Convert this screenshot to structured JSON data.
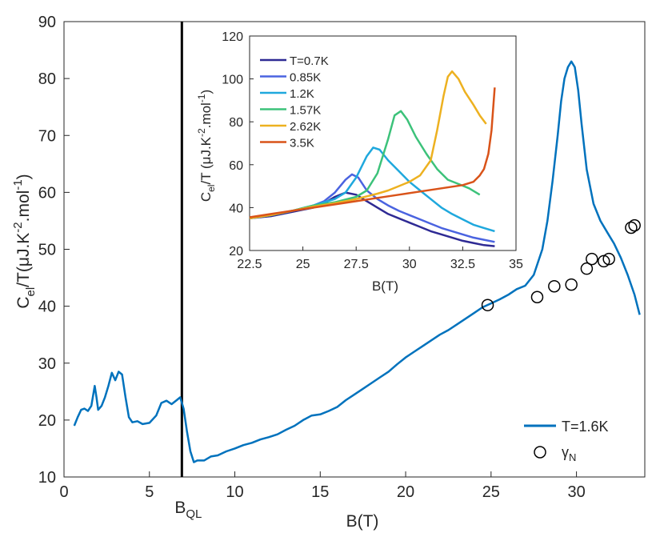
{
  "chart_data": [
    {
      "type": "line",
      "xlabel": "B(T)",
      "ylabel_main": "C",
      "ylabel_sub": "el",
      "ylabel_rest": "/T(μJ.K",
      "ylabel_sup1": "-2",
      "ylabel_mid": ".mol",
      "ylabel_sup2": "-1",
      "ylabel_end": ")",
      "xlim": [
        0,
        34
      ],
      "ylim": [
        10,
        90
      ],
      "xticks": [
        0,
        5,
        10,
        15,
        20,
        25,
        30
      ],
      "yticks": [
        10,
        20,
        30,
        40,
        50,
        60,
        70,
        80,
        90
      ],
      "vline": {
        "x": 6.9,
        "label_main": "B",
        "label_sub": "QL"
      },
      "series": [
        {
          "name": "T=1.6K",
          "color": "#0072BD",
          "x": [
            0.6,
            0.8,
            1.0,
            1.2,
            1.4,
            1.6,
            1.8,
            1.9,
            2.0,
            2.2,
            2.4,
            2.6,
            2.8,
            3.0,
            3.2,
            3.4,
            3.6,
            3.8,
            4.0,
            4.3,
            4.6,
            5.0,
            5.4,
            5.7,
            6.0,
            6.3,
            6.6,
            6.8,
            7.0,
            7.2,
            7.4,
            7.6,
            7.8,
            8.2,
            8.6,
            9.0,
            9.5,
            10.0,
            10.5,
            11.0,
            11.5,
            12.0,
            12.5,
            13.0,
            13.5,
            14.0,
            14.5,
            15.0,
            15.5,
            16.0,
            16.5,
            17.0,
            17.5,
            18.0,
            18.5,
            19.0,
            19.5,
            20.0,
            20.5,
            21.0,
            21.5,
            22.0,
            22.5,
            23.0,
            23.5,
            24.0,
            24.5,
            25.0,
            25.5,
            26.0,
            26.5,
            27.0,
            27.5,
            28.0,
            28.3,
            28.6,
            28.9,
            29.1,
            29.3,
            29.5,
            29.7,
            29.9,
            30.1,
            30.3,
            30.6,
            31.0,
            31.4,
            31.8,
            32.2,
            32.6,
            33.0,
            33.4,
            33.7
          ],
          "y": [
            19,
            20.5,
            21.8,
            22,
            21.6,
            22.5,
            26,
            24,
            21.8,
            22.5,
            24,
            26,
            28.3,
            27,
            28.5,
            28,
            24,
            20.5,
            19.6,
            19.8,
            19.3,
            19.5,
            20.8,
            23,
            23.4,
            22.8,
            23.5,
            24,
            22,
            18,
            14.5,
            12.6,
            12.9,
            12.9,
            13.6,
            13.8,
            14.5,
            15,
            15.6,
            16,
            16.6,
            17,
            17.5,
            18.3,
            19,
            20,
            20.8,
            21,
            21.6,
            22.3,
            23.5,
            24.5,
            25.5,
            26.5,
            27.5,
            28.5,
            29.8,
            31,
            32,
            33,
            34,
            35,
            35.8,
            36.8,
            37.8,
            38.8,
            39.8,
            40.5,
            41.2,
            42,
            43,
            43.6,
            45.5,
            50,
            55,
            62,
            70,
            76,
            80,
            82,
            83,
            82,
            78,
            72,
            64,
            58,
            55,
            53,
            51,
            48.5,
            45.5,
            42,
            38.5
          ]
        }
      ],
      "gamma_n": {
        "name": "γ",
        "name_sub": "N",
        "x": [
          24.8,
          27.7,
          28.7,
          29.7,
          30.6,
          30.9,
          31.6,
          31.9,
          33.2,
          33.4
        ],
        "y": [
          40.2,
          41.6,
          43.5,
          43.8,
          46.6,
          48.3,
          47.9,
          48.3,
          53.8,
          54.2
        ]
      },
      "legend": {
        "position": "bottom-right",
        "line_label": "T=1.6K"
      }
    },
    {
      "type": "line",
      "xlabel": "B(T)",
      "ylabel_main": "C",
      "ylabel_sub": "el",
      "ylabel_rest": "/T (μJ.K",
      "ylabel_sup1": "-2",
      "ylabel_mid": ".mol",
      "ylabel_sup2": "-1",
      "ylabel_end": ")",
      "xlim": [
        22.5,
        35
      ],
      "ylim": [
        20,
        120
      ],
      "xticks": [
        22.5,
        25,
        27.5,
        30,
        32.5,
        35
      ],
      "xtick_labels": [
        "22.5",
        "25",
        "27.5",
        "30",
        "32.5",
        "35"
      ],
      "yticks": [
        20,
        40,
        60,
        80,
        100,
        120
      ],
      "legend": {
        "position": "top-left"
      },
      "series": [
        {
          "name": "T=0.7K",
          "color": "#2E2A94",
          "x": [
            22.5,
            23.5,
            24.5,
            25.5,
            26.0,
            26.5,
            27.0,
            27.5,
            28.0,
            28.5,
            29.0,
            29.5,
            30.0,
            30.5,
            31.0,
            31.5,
            32.0,
            32.5,
            33.0,
            33.5,
            34.0
          ],
          "y": [
            35,
            36,
            38,
            40,
            42,
            45,
            47,
            46,
            43,
            40,
            37,
            35,
            33,
            31,
            29,
            27.5,
            26,
            24.5,
            23.5,
            22.5,
            22
          ]
        },
        {
          "name": "0.85K",
          "color": "#4A63E0",
          "x": [
            22.5,
            23.5,
            24.5,
            25.5,
            26.0,
            26.5,
            27.0,
            27.3,
            27.6,
            28.0,
            28.5,
            29.0,
            29.5,
            30.0,
            30.5,
            31.0,
            31.5,
            32.0,
            32.5,
            33.0,
            33.5,
            34.0
          ],
          "y": [
            35,
            36.5,
            38.5,
            41,
            43,
            47,
            53,
            55.5,
            54,
            48,
            44,
            41,
            38.5,
            36.5,
            34.5,
            32.5,
            30.5,
            29,
            27.5,
            26,
            25,
            24
          ]
        },
        {
          "name": "1.2K",
          "color": "#1FA8DD",
          "x": [
            22.5,
            23.5,
            24.5,
            25.5,
            26.5,
            27.0,
            27.5,
            28.0,
            28.3,
            28.6,
            29.0,
            29.5,
            30.0,
            30.5,
            31.0,
            31.5,
            32.0,
            32.5,
            33.0,
            33.5,
            34.0
          ],
          "y": [
            35,
            36.5,
            38.5,
            41,
            44,
            47,
            54,
            64,
            68,
            67,
            62,
            57,
            52,
            48,
            44,
            40,
            37,
            34.5,
            32,
            30.5,
            29
          ]
        },
        {
          "name": "1.57K",
          "color": "#3CC27A",
          "x": [
            22.5,
            23.5,
            24.5,
            25.5,
            26.5,
            27.5,
            28.0,
            28.5,
            29.0,
            29.3,
            29.6,
            29.9,
            30.3,
            30.8,
            31.3,
            31.8,
            32.3,
            32.8,
            33.3
          ],
          "y": [
            35,
            36.5,
            38.5,
            41,
            42.5,
            45,
            48,
            56,
            72,
            83,
            85,
            81,
            73,
            65,
            58,
            53,
            51,
            49,
            46
          ]
        },
        {
          "name": "2.62K",
          "color": "#EDB120",
          "x": [
            22.5,
            23.5,
            24.5,
            25.5,
            26.5,
            27.5,
            28.5,
            29.0,
            29.5,
            30.0,
            30.5,
            31.0,
            31.3,
            31.6,
            31.8,
            32.0,
            32.3,
            32.6,
            33.0,
            33.3,
            33.6
          ],
          "y": [
            35,
            36.5,
            38.5,
            40.5,
            42,
            44,
            46.5,
            48,
            50,
            52,
            55,
            62,
            76,
            92,
            101,
            103.5,
            100,
            94,
            88,
            83,
            79
          ]
        },
        {
          "name": "3.5K",
          "color": "#D95319",
          "x": [
            22.5,
            23.5,
            24.5,
            25.5,
            26.5,
            27.5,
            28.5,
            29.5,
            30.5,
            31.5,
            32.5,
            33.0,
            33.3,
            33.5,
            33.7,
            33.85,
            34.0
          ],
          "y": [
            35.5,
            37,
            38.5,
            40,
            41.5,
            43,
            44.5,
            46,
            47.5,
            49,
            50.5,
            52,
            55,
            58,
            65,
            76,
            96
          ]
        }
      ]
    }
  ]
}
